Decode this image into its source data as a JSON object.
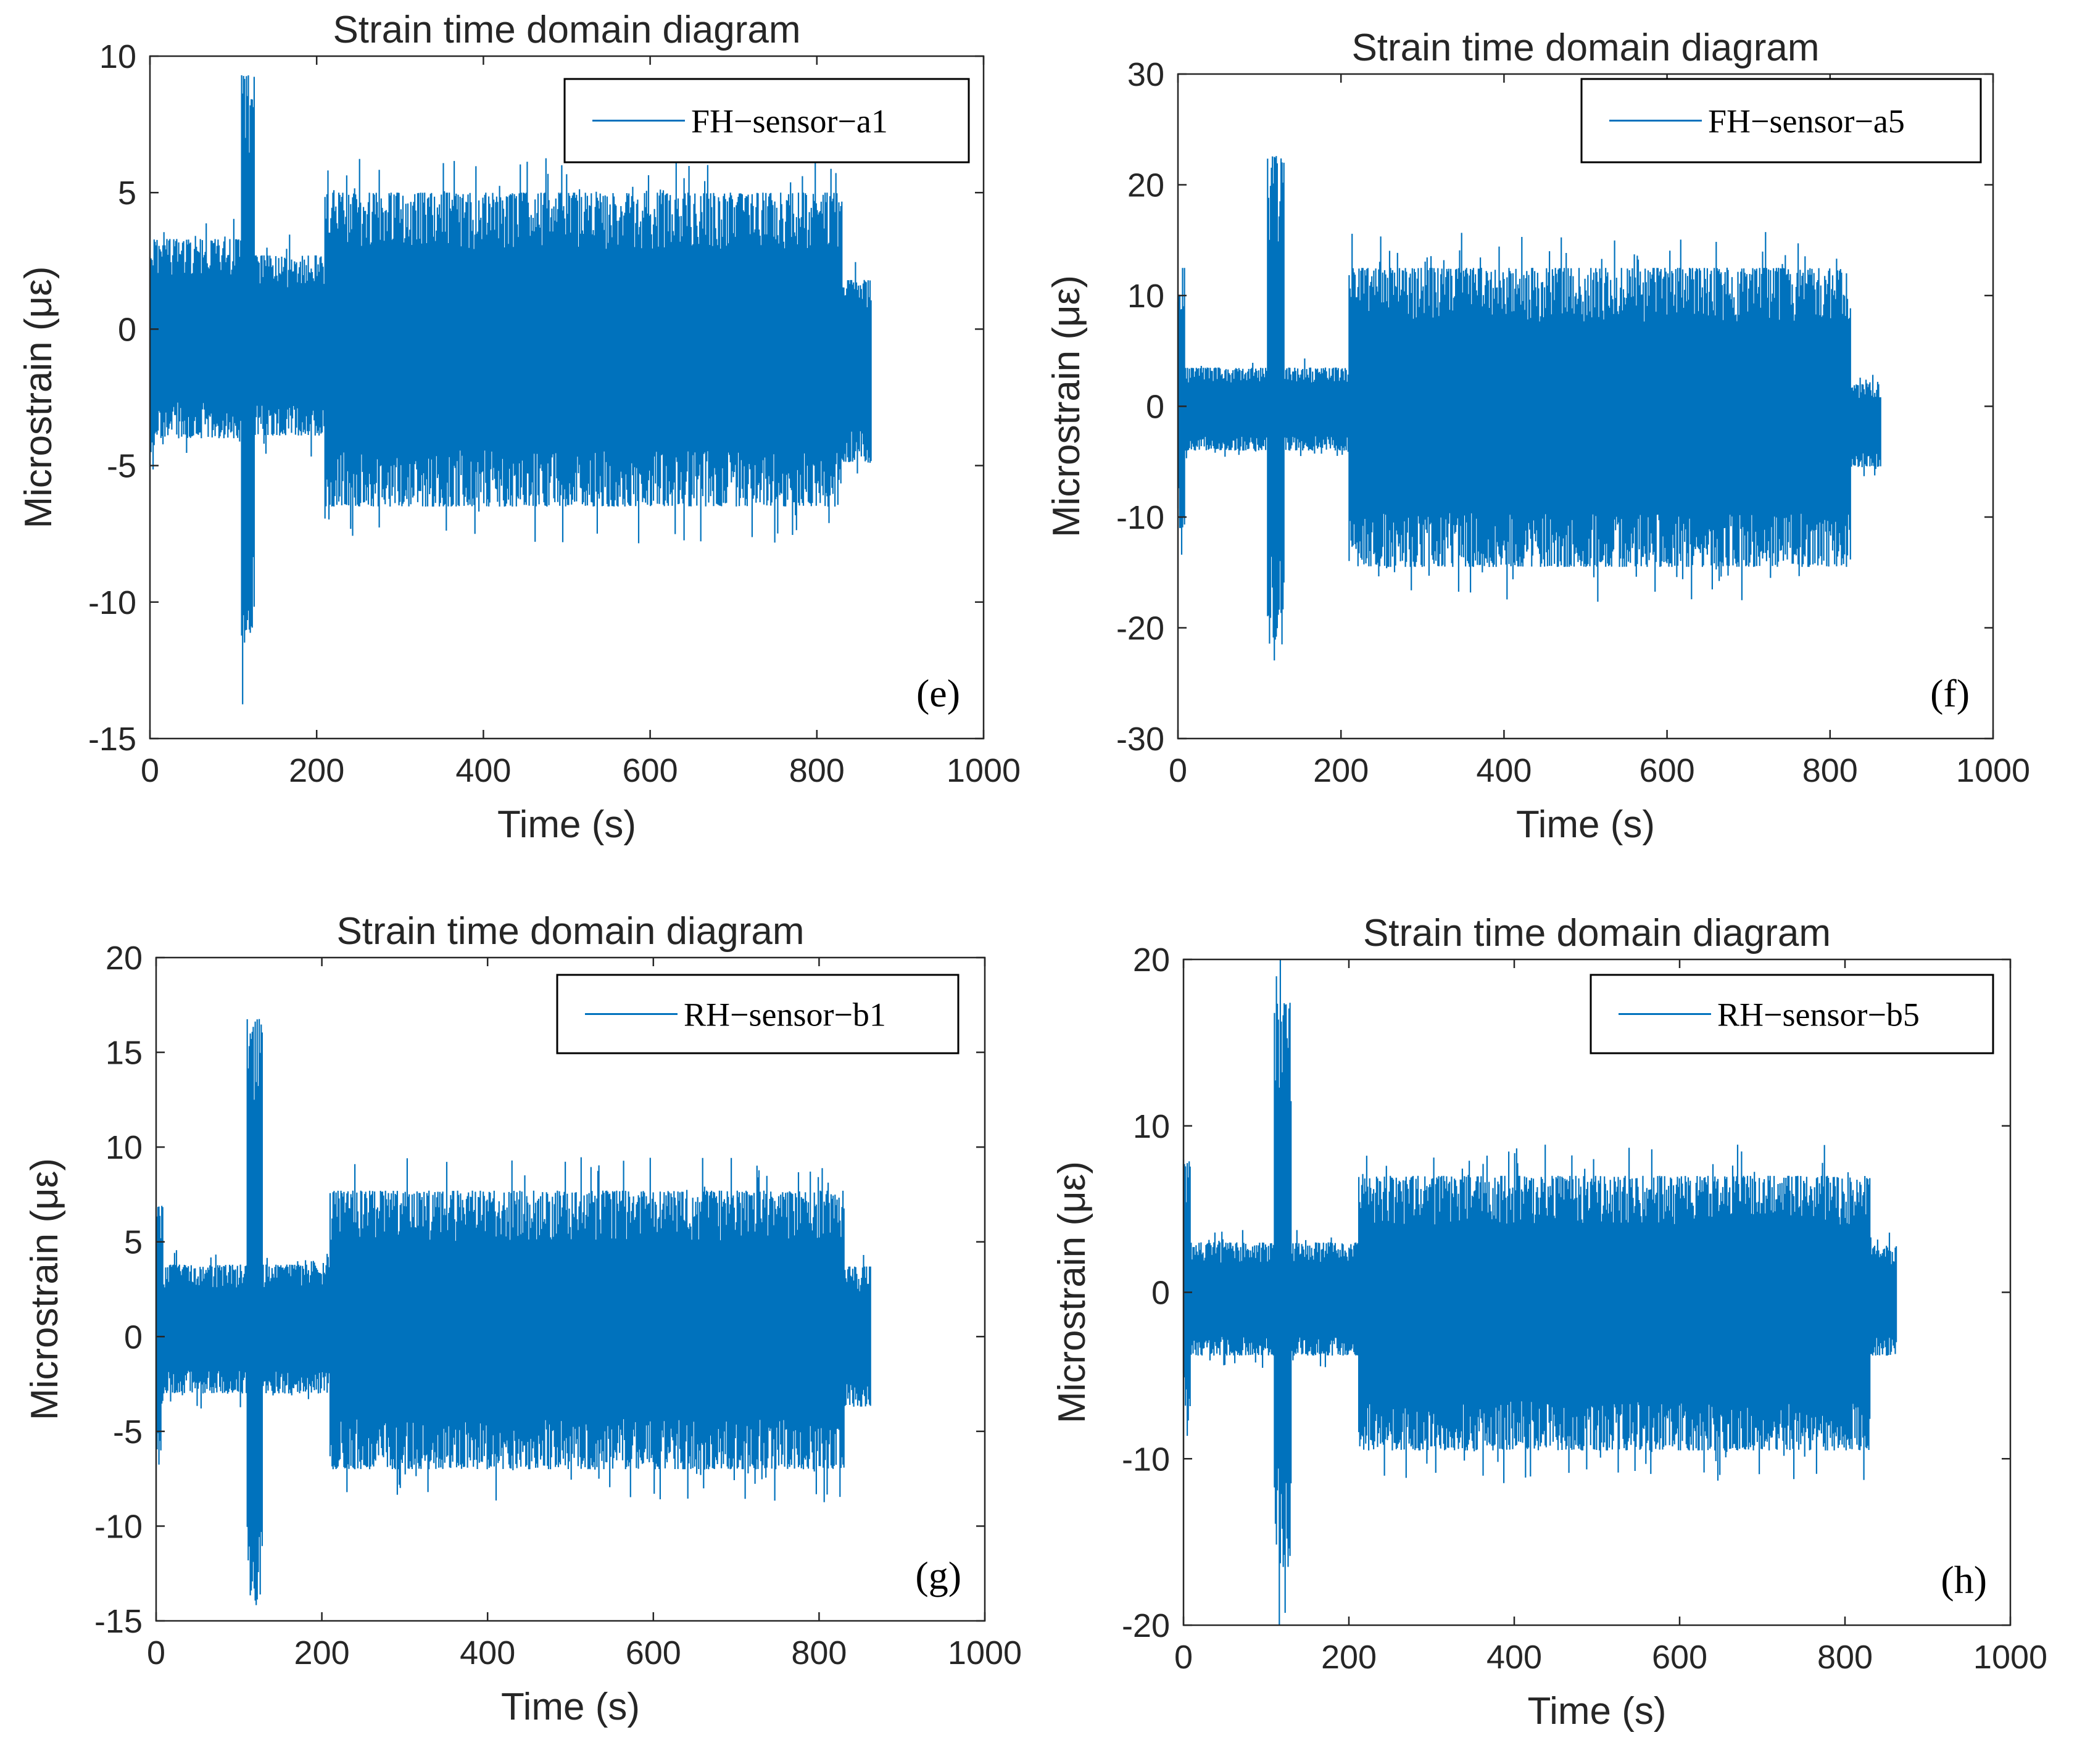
{
  "chart_data": [
    {
      "type": "line",
      "title": "Strain time domain diagram",
      "xlabel": "Time (s)",
      "ylabel": "Microstrain (με)",
      "xlim": [
        0,
        1000
      ],
      "ylim": [
        -15,
        10
      ],
      "xticks": [
        0,
        200,
        400,
        600,
        800,
        1000
      ],
      "yticks": [
        -15,
        -10,
        -5,
        0,
        5,
        10
      ],
      "grid": false,
      "legend_position": "top-right",
      "panel_label": "(e)",
      "color": "#0072BD",
      "series": [
        {
          "name": "FH−sensor−a1",
          "note_kind": "envelope",
          "segments": [
            {
              "x": [
                0,
                5
              ],
              "upper": 3.3,
              "lower": -5.2
            },
            {
              "x": [
                5,
                110
              ],
              "upper": 3.3,
              "lower": -4.0
            },
            {
              "x": [
                110,
                125
              ],
              "upper": 9.3,
              "lower": -11.5
            },
            {
              "x": [
                125,
                210
              ],
              "upper": 2.7,
              "lower": -3.9
            },
            {
              "x": [
                210,
                830
              ],
              "upper": 5.0,
              "lower": -6.5
            },
            {
              "x": [
                830,
                865
              ],
              "upper": 1.8,
              "lower": -4.9
            }
          ]
        }
      ]
    },
    {
      "type": "line",
      "title": "Strain time domain diagram",
      "xlabel": "Time (s)",
      "ylabel": "Microstrain (με)",
      "xlim": [
        0,
        1000
      ],
      "ylim": [
        -30,
        30
      ],
      "xticks": [
        0,
        200,
        400,
        600,
        800,
        1000
      ],
      "yticks": [
        -30,
        -20,
        -10,
        0,
        10,
        20,
        30
      ],
      "grid": false,
      "legend_position": "top-right",
      "panel_label": "(f)",
      "color": "#0072BD",
      "series": [
        {
          "name": "FH−sensor−a5",
          "segments": [
            {
              "x": [
                0,
                8
              ],
              "upper": 12.5,
              "lower": -11.0
            },
            {
              "x": [
                8,
                110
              ],
              "upper": 3.5,
              "lower": -4.0
            },
            {
              "x": [
                110,
                130
              ],
              "upper": 22.6,
              "lower": -21.5
            },
            {
              "x": [
                130,
                210
              ],
              "upper": 3.5,
              "lower": -4.0
            },
            {
              "x": [
                210,
                825
              ],
              "upper": 12.5,
              "lower": -14.5
            },
            {
              "x": [
                825,
                862
              ],
              "upper": 2.0,
              "lower": -5.5
            }
          ]
        }
      ]
    },
    {
      "type": "line",
      "title": "Strain time domain diagram",
      "xlabel": "Time (s)",
      "ylabel": "Microstrain (με)",
      "xlim": [
        0,
        1000
      ],
      "ylim": [
        -15,
        20
      ],
      "xticks": [
        0,
        200,
        400,
        600,
        800,
        1000
      ],
      "yticks": [
        -15,
        -10,
        -5,
        0,
        5,
        10,
        15,
        20
      ],
      "grid": false,
      "legend_position": "top-right",
      "panel_label": "(g)",
      "color": "#0072BD",
      "series": [
        {
          "name": "RH−sensor−b1",
          "segments": [
            {
              "x": [
                0,
                8
              ],
              "upper": 6.9,
              "lower": -5.5
            },
            {
              "x": [
                8,
                110
              ],
              "upper": 3.8,
              "lower": -3.0
            },
            {
              "x": [
                110,
                128
              ],
              "upper": 16.8,
              "lower": -14.2
            },
            {
              "x": [
                128,
                210
              ],
              "upper": 3.8,
              "lower": -3.0
            },
            {
              "x": [
                210,
                830
              ],
              "upper": 7.7,
              "lower": -7.0
            },
            {
              "x": [
                830,
                862
              ],
              "upper": 3.7,
              "lower": -3.7
            }
          ]
        }
      ]
    },
    {
      "type": "line",
      "title": "Strain time domain diagram",
      "xlabel": "Time (s)",
      "ylabel": "Microstrain (με)",
      "xlim": [
        0,
        1000
      ],
      "ylim": [
        -20,
        20
      ],
      "xticks": [
        0,
        200,
        400,
        600,
        800,
        1000
      ],
      "yticks": [
        -20,
        -10,
        0,
        10,
        20
      ],
      "grid": false,
      "legend_position": "top-right",
      "panel_label": "(h)",
      "color": "#0072BD",
      "series": [
        {
          "name": "RH−sensor−b5",
          "segments": [
            {
              "x": [
                0,
                8
              ],
              "upper": 8.0,
              "lower": -7.0
            },
            {
              "x": [
                8,
                110
              ],
              "upper": 3.0,
              "lower": -3.8
            },
            {
              "x": [
                110,
                130
              ],
              "upper": 17.4,
              "lower": -16.5
            },
            {
              "x": [
                130,
                212
              ],
              "upper": 3.0,
              "lower": -3.8
            },
            {
              "x": [
                212,
                830
              ],
              "upper": 7.0,
              "lower": -9.5
            },
            {
              "x": [
                830,
                862
              ],
              "upper": 2.8,
              "lower": -3.8
            }
          ]
        }
      ]
    }
  ]
}
